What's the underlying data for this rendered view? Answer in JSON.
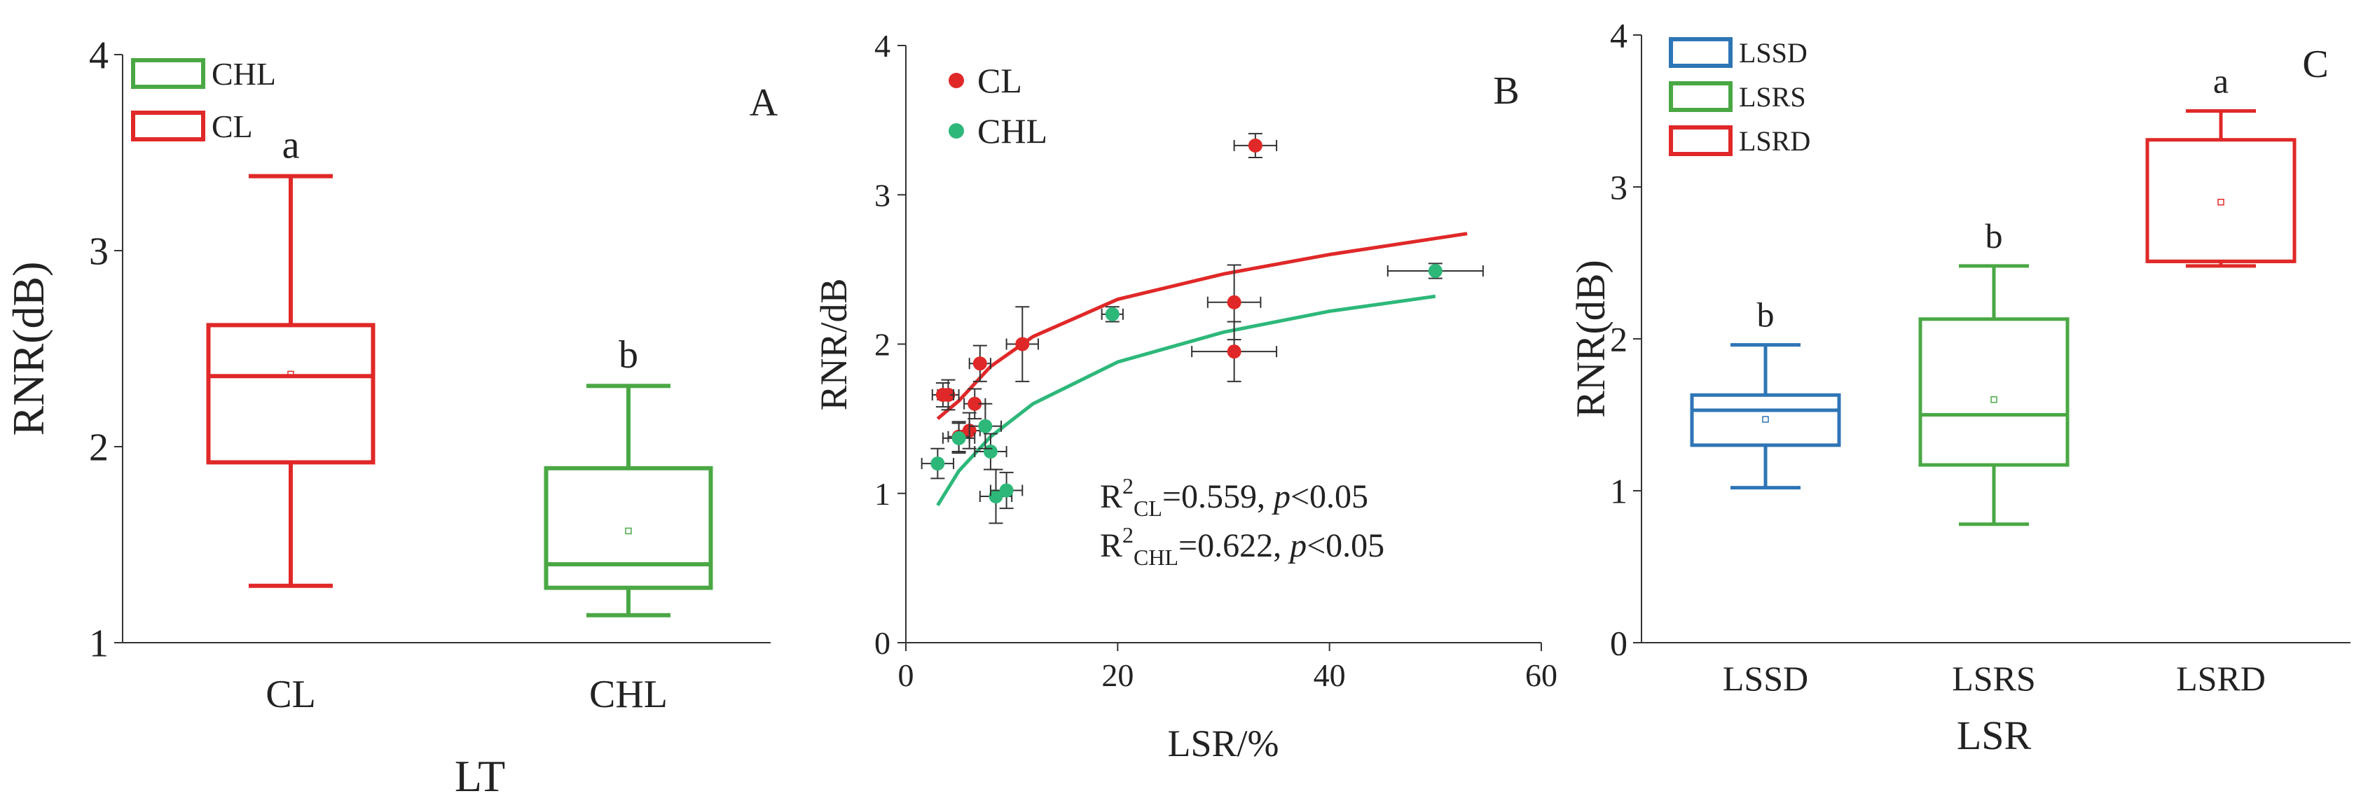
{
  "chart_data": [
    {
      "panel": "A",
      "type": "box",
      "ylabel": "RNR(dB)",
      "xlabel": "LT",
      "ylim": [
        1,
        4
      ],
      "yticks": [
        1,
        2,
        3,
        4
      ],
      "legend": {
        "placement": "top-left",
        "entries": [
          {
            "name": "CHL",
            "color": "#4aa844"
          },
          {
            "name": "CL",
            "color": "#e02828"
          }
        ]
      },
      "boxes": [
        {
          "category": "CL",
          "min": 1.29,
          "q1": 1.92,
          "median": 2.36,
          "mean": 2.37,
          "q3": 2.62,
          "max": 3.38,
          "letter": "a",
          "color": "#e02828"
        },
        {
          "category": "CHL",
          "min": 1.14,
          "q1": 1.28,
          "median": 1.4,
          "mean": 1.57,
          "q3": 1.89,
          "max": 2.31,
          "letter": "b",
          "color": "#4aa844"
        }
      ]
    },
    {
      "panel": "B",
      "type": "scatter",
      "xlabel": "LSR/%",
      "ylabel": "RNR/dB",
      "xlim": [
        0,
        60
      ],
      "ylim": [
        0,
        4
      ],
      "xticks": [
        0,
        20,
        40,
        60
      ],
      "yticks": [
        0,
        1,
        2,
        3,
        4
      ],
      "legend": {
        "placement": "top-left",
        "entries": [
          {
            "name": "CL",
            "color": "#e02828"
          },
          {
            "name": "CHL",
            "color": "#2db87a"
          }
        ]
      },
      "series": [
        {
          "name": "CL",
          "color": "#e02828",
          "fit": {
            "x0": 3,
            "x1": 53,
            "points": [
              [
                3,
                1.5
              ],
              [
                5,
                1.62
              ],
              [
                8,
                1.85
              ],
              [
                12,
                2.05
              ],
              [
                20,
                2.3
              ],
              [
                30,
                2.47
              ],
              [
                40,
                2.6
              ],
              [
                53,
                2.74
              ]
            ]
          },
          "points": [
            {
              "x": 33,
              "y": 3.33,
              "xerr": 2,
              "yerr": 0.08
            },
            {
              "x": 31,
              "y": 2.28,
              "xerr": 2.5,
              "yerr": 0.25
            },
            {
              "x": 31,
              "y": 1.95,
              "xerr": 4,
              "yerr": 0.2
            },
            {
              "x": 11,
              "y": 2.0,
              "xerr": 1.5,
              "yerr": 0.25
            },
            {
              "x": 7,
              "y": 1.87,
              "xerr": 1,
              "yerr": 0.12
            },
            {
              "x": 4,
              "y": 1.66,
              "xerr": 1,
              "yerr": 0.1
            },
            {
              "x": 3.5,
              "y": 1.66,
              "xerr": 1,
              "yerr": 0.08
            },
            {
              "x": 6.5,
              "y": 1.6,
              "xerr": 1,
              "yerr": 0.1
            },
            {
              "x": 6,
              "y": 1.42,
              "xerr": 1,
              "yerr": 0.12
            },
            {
              "x": 5,
              "y": 1.38,
              "xerr": 1,
              "yerr": 0.1
            }
          ]
        },
        {
          "name": "CHL",
          "color": "#2db87a",
          "fit": {
            "x0": 3,
            "x1": 50,
            "points": [
              [
                3,
                0.92
              ],
              [
                5,
                1.15
              ],
              [
                8,
                1.38
              ],
              [
                12,
                1.6
              ],
              [
                20,
                1.88
              ],
              [
                30,
                2.08
              ],
              [
                40,
                2.22
              ],
              [
                50,
                2.32
              ]
            ]
          },
          "points": [
            {
              "x": 50,
              "y": 2.49,
              "xerr": 4.5,
              "yerr": 0.05
            },
            {
              "x": 19.5,
              "y": 2.2,
              "xerr": 1,
              "yerr": 0.05
            },
            {
              "x": 3,
              "y": 1.2,
              "xerr": 1.5,
              "yerr": 0.1
            },
            {
              "x": 5,
              "y": 1.37,
              "xerr": 1.5,
              "yerr": 0.1
            },
            {
              "x": 8,
              "y": 1.28,
              "xerr": 1.5,
              "yerr": 0.12
            },
            {
              "x": 7.5,
              "y": 1.45,
              "xerr": 1.5,
              "yerr": 0.15
            },
            {
              "x": 8.5,
              "y": 0.98,
              "xerr": 1.5,
              "yerr": 0.18
            },
            {
              "x": 9.5,
              "y": 1.02,
              "xerr": 1.5,
              "yerr": 0.12
            }
          ]
        }
      ],
      "annotations": [
        {
          "base": "R",
          "sup": "2",
          "sub": "CL",
          "rest": "=0.559, ",
          "p": "p",
          "tail": "<0.05"
        },
        {
          "base": "R",
          "sup": "2",
          "sub": "CHL",
          "rest": "=0.622, ",
          "p": "p",
          "tail": "<0.05"
        }
      ]
    },
    {
      "panel": "C",
      "type": "box",
      "ylabel": "RNR(dB)",
      "xlabel": "LSR",
      "ylim": [
        0,
        4
      ],
      "yticks": [
        0,
        1,
        2,
        3,
        4
      ],
      "legend": {
        "placement": "top-left",
        "entries": [
          {
            "name": "LSSD",
            "color": "#2e75b6"
          },
          {
            "name": "LSRS",
            "color": "#4aa844"
          },
          {
            "name": "LSRD",
            "color": "#e02828"
          }
        ]
      },
      "boxes": [
        {
          "category": "LSSD",
          "min": 1.02,
          "q1": 1.3,
          "median": 1.53,
          "mean": 1.47,
          "q3": 1.63,
          "max": 1.96,
          "letter": "b",
          "color": "#2e75b6"
        },
        {
          "category": "LSRS",
          "min": 0.78,
          "q1": 1.17,
          "median": 1.5,
          "mean": 1.6,
          "q3": 2.13,
          "max": 2.48,
          "letter": "b",
          "color": "#4aa844"
        },
        {
          "category": "LSRD",
          "min": 2.48,
          "q1": 2.51,
          "median": 2.51,
          "mean": 2.9,
          "q3": 3.31,
          "max": 3.5,
          "letter": "a",
          "color": "#e02828"
        }
      ]
    }
  ]
}
